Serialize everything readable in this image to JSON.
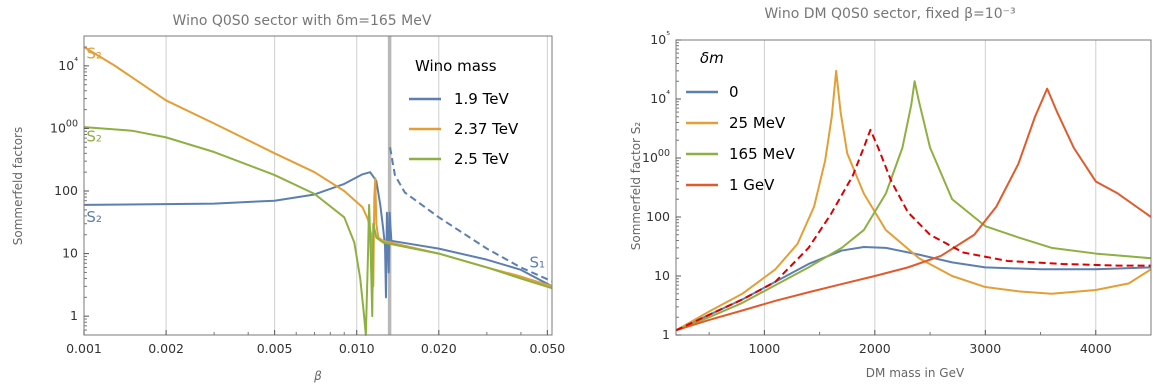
{
  "chart_data": [
    {
      "type": "line",
      "title": "Wino Q0S0 sector with δm=165 MeV",
      "xlabel": "β",
      "ylabel": "Sommerfeld factors",
      "xscale": "log",
      "yscale": "log",
      "xlim": [
        0.001,
        0.052
      ],
      "ylim": [
        0.5,
        30000
      ],
      "x_ticks": [
        0.001,
        0.002,
        0.005,
        0.01,
        0.02,
        0.05
      ],
      "x_tick_labels": [
        "0.001",
        "0.002",
        "0.005",
        "0.010",
        "0.020",
        "0.050"
      ],
      "y_ticks": [
        1,
        10,
        100,
        1000,
        10000
      ],
      "y_tick_labels": [
        "1",
        "10",
        "100",
        "1000",
        "10⁴"
      ],
      "grid": "vertical",
      "threshold_line_x": 0.0132,
      "legend": {
        "title": "Wino mass",
        "placement": "top-right"
      },
      "annotations": [
        {
          "text": "S₂",
          "x": 0.00102,
          "y": 13000,
          "color": "#e39f36"
        },
        {
          "text": "S₂",
          "x": 0.00102,
          "y": 620,
          "color": "#8eb040"
        },
        {
          "text": "S₂",
          "x": 0.00102,
          "y": 32,
          "color": "#5b7fb0"
        },
        {
          "text": "S₁",
          "x": 0.043,
          "y": 6,
          "color": "#5b7fb0"
        }
      ],
      "series": [
        {
          "name": "1.9 TeV",
          "color": "#5b7fb0",
          "dash": false,
          "points": [
            [
              0.001,
              60
            ],
            [
              0.003,
              63
            ],
            [
              0.005,
              70
            ],
            [
              0.007,
              88
            ],
            [
              0.009,
              130
            ],
            [
              0.0105,
              185
            ],
            [
              0.0112,
              200
            ],
            [
              0.0118,
              145
            ],
            [
              0.0122,
              60
            ],
            [
              0.0125,
              25
            ],
            [
              0.0127,
              13
            ],
            [
              0.0128,
              2
            ],
            [
              0.0129,
              45
            ],
            [
              0.013,
              18
            ],
            [
              0.0131,
              5
            ],
            [
              0.0132,
              45
            ],
            [
              0.0134,
              16
            ],
            [
              0.02,
              12
            ],
            [
              0.03,
              8
            ],
            [
              0.04,
              5.5
            ],
            [
              0.052,
              3
            ]
          ]
        },
        {
          "name": "S₁ (1.9 TeV)",
          "color": "#5b7fb0",
          "dash": true,
          "points": [
            [
              0.01325,
              500
            ],
            [
              0.0138,
              180
            ],
            [
              0.015,
              95
            ],
            [
              0.02,
              38
            ],
            [
              0.03,
              12
            ],
            [
              0.04,
              6
            ],
            [
              0.052,
              3.6
            ]
          ]
        },
        {
          "name": "2.37 TeV",
          "color": "#e39f36",
          "dash": false,
          "points": [
            [
              0.001,
              20000
            ],
            [
              0.0013,
              10000
            ],
            [
              0.002,
              2800
            ],
            [
              0.003,
              1200
            ],
            [
              0.005,
              400
            ],
            [
              0.007,
              200
            ],
            [
              0.009,
              100
            ],
            [
              0.0105,
              55
            ],
            [
              0.011,
              35
            ],
            [
              0.0113,
              20
            ],
            [
              0.0115,
              3
            ],
            [
              0.0116,
              80
            ],
            [
              0.0117,
              160
            ],
            [
              0.0118,
              30
            ],
            [
              0.012,
              18
            ],
            [
              0.0125,
              16
            ],
            [
              0.02,
              10
            ],
            [
              0.03,
              6
            ],
            [
              0.04,
              4.3
            ],
            [
              0.052,
              3
            ]
          ]
        },
        {
          "name": "2.5 TeV",
          "color": "#8eb040",
          "dash": false,
          "points": [
            [
              0.001,
              1050
            ],
            [
              0.0015,
              920
            ],
            [
              0.002,
              720
            ],
            [
              0.003,
              420
            ],
            [
              0.005,
              180
            ],
            [
              0.007,
              90
            ],
            [
              0.009,
              38
            ],
            [
              0.0098,
              15
            ],
            [
              0.0103,
              4
            ],
            [
              0.0106,
              1.2
            ],
            [
              0.0108,
              0.5
            ],
            [
              0.011,
              10
            ],
            [
              0.0111,
              60
            ],
            [
              0.0112,
              20
            ],
            [
              0.0113,
              5
            ],
            [
              0.0114,
              1
            ],
            [
              0.0115,
              30
            ],
            [
              0.0118,
              18
            ],
            [
              0.0125,
              15
            ],
            [
              0.02,
              10
            ],
            [
              0.03,
              6
            ],
            [
              0.04,
              4
            ],
            [
              0.052,
              2.8
            ]
          ]
        }
      ]
    },
    {
      "type": "line",
      "title": "Wino DM Q0S0 sector, fixed β=10⁻³",
      "xlabel": "DM mass in GeV",
      "ylabel": "Sommerfeld factor S₂",
      "yscale": "log",
      "xlim": [
        200,
        4500
      ],
      "ylim": [
        1,
        100000
      ],
      "x_ticks": [
        1000,
        2000,
        3000,
        4000
      ],
      "x_tick_labels": [
        "1000",
        "2000",
        "3000",
        "4000"
      ],
      "y_ticks": [
        1,
        10,
        100,
        1000,
        10000,
        100000
      ],
      "y_tick_labels": [
        "1",
        "10",
        "100",
        "1000",
        "10⁴",
        "10⁵"
      ],
      "grid": "vertical",
      "legend": {
        "title": "δm",
        "placement": "top-left"
      },
      "series": [
        {
          "name": "0",
          "color": "#5b7fb0",
          "dash": false,
          "points": [
            [
              200,
              1.2
            ],
            [
              500,
              2.2
            ],
            [
              800,
              4
            ],
            [
              1100,
              8
            ],
            [
              1400,
              16
            ],
            [
              1700,
              27
            ],
            [
              1900,
              31
            ],
            [
              2100,
              30
            ],
            [
              2400,
              23
            ],
            [
              2700,
              17
            ],
            [
              3000,
              14
            ],
            [
              3500,
              13
            ],
            [
              4000,
              13
            ],
            [
              4500,
              14
            ]
          ]
        },
        {
          "name": "25 MeV",
          "color": "#e39f36",
          "dash": false,
          "points": [
            [
              200,
              1.2
            ],
            [
              500,
              2.5
            ],
            [
              800,
              5
            ],
            [
              1100,
              13
            ],
            [
              1300,
              35
            ],
            [
              1450,
              150
            ],
            [
              1550,
              900
            ],
            [
              1610,
              5000
            ],
            [
              1650,
              30000
            ],
            [
              1690,
              6000
            ],
            [
              1750,
              1200
            ],
            [
              1900,
              250
            ],
            [
              2100,
              60
            ],
            [
              2400,
              20
            ],
            [
              2700,
              10
            ],
            [
              3000,
              6.5
            ],
            [
              3300,
              5.5
            ],
            [
              3600,
              5
            ],
            [
              4000,
              5.8
            ],
            [
              4300,
              7.5
            ],
            [
              4500,
              13
            ]
          ]
        },
        {
          "name": "165 MeV",
          "color": "#8eb040",
          "dash": false,
          "points": [
            [
              200,
              1.2
            ],
            [
              500,
              2
            ],
            [
              800,
              3.5
            ],
            [
              1100,
              7
            ],
            [
              1400,
              14
            ],
            [
              1700,
              30
            ],
            [
              1900,
              60
            ],
            [
              2100,
              250
            ],
            [
              2250,
              1500
            ],
            [
              2330,
              8000
            ],
            [
              2360,
              20000
            ],
            [
              2400,
              9000
            ],
            [
              2500,
              1500
            ],
            [
              2700,
              200
            ],
            [
              3000,
              70
            ],
            [
              3300,
              45
            ],
            [
              3600,
              30
            ],
            [
              4000,
              24
            ],
            [
              4500,
              20
            ]
          ]
        },
        {
          "name": "1 GeV",
          "color": "#e25a2c",
          "dash": false,
          "points": [
            [
              200,
              1.2
            ],
            [
              500,
              1.8
            ],
            [
              800,
              2.6
            ],
            [
              1100,
              3.8
            ],
            [
              1400,
              5.3
            ],
            [
              1700,
              7.3
            ],
            [
              2000,
              10
            ],
            [
              2300,
              14
            ],
            [
              2600,
              22
            ],
            [
              2900,
              50
            ],
            [
              3100,
              150
            ],
            [
              3300,
              800
            ],
            [
              3450,
              5000
            ],
            [
              3560,
              15000
            ],
            [
              3650,
              6000
            ],
            [
              3800,
              1500
            ],
            [
              4000,
              400
            ],
            [
              4200,
              250
            ],
            [
              4500,
              100
            ]
          ]
        },
        {
          "name": "",
          "color": "#dd0000",
          "dash": true,
          "points": [
            [
              200,
              1.2
            ],
            [
              500,
              2.2
            ],
            [
              800,
              4
            ],
            [
              1100,
              8
            ],
            [
              1400,
              30
            ],
            [
              1600,
              110
            ],
            [
              1800,
              500
            ],
            [
              1900,
              1500
            ],
            [
              1960,
              3000
            ],
            [
              2030,
              1500
            ],
            [
              2150,
              400
            ],
            [
              2300,
              120
            ],
            [
              2500,
              50
            ],
            [
              2800,
              25
            ],
            [
              3200,
              18
            ],
            [
              3700,
              16
            ],
            [
              4200,
              15
            ],
            [
              4500,
              15
            ]
          ]
        }
      ]
    }
  ]
}
